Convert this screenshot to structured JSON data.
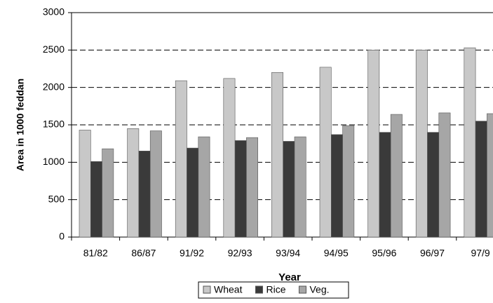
{
  "chart_data": {
    "type": "bar",
    "x_label": "Year",
    "y_label": "Area in 1000 feddan",
    "categories": [
      "81/82",
      "86/87",
      "91/92",
      "92/93",
      "93/94",
      "94/95",
      "95/96",
      "96/97",
      "97/9"
    ],
    "series": [
      {
        "name": "Wheat",
        "color": "#c8c8c8",
        "values": [
          1430,
          1450,
          2090,
          2120,
          2200,
          2270,
          2500,
          2500,
          2530
        ]
      },
      {
        "name": "Rice",
        "color": "#3a3a3a",
        "values": [
          1010,
          1150,
          1190,
          1290,
          1280,
          1370,
          1400,
          1400,
          1550
        ]
      },
      {
        "name": "Veg.",
        "color": "#a6a6a6",
        "values": [
          1180,
          1420,
          1340,
          1330,
          1340,
          1490,
          1640,
          1660,
          1650
        ]
      }
    ],
    "ylim": [
      0,
      3000
    ],
    "yticks": [
      0,
      500,
      1000,
      1500,
      2000,
      2500,
      3000
    ],
    "grid": true
  }
}
